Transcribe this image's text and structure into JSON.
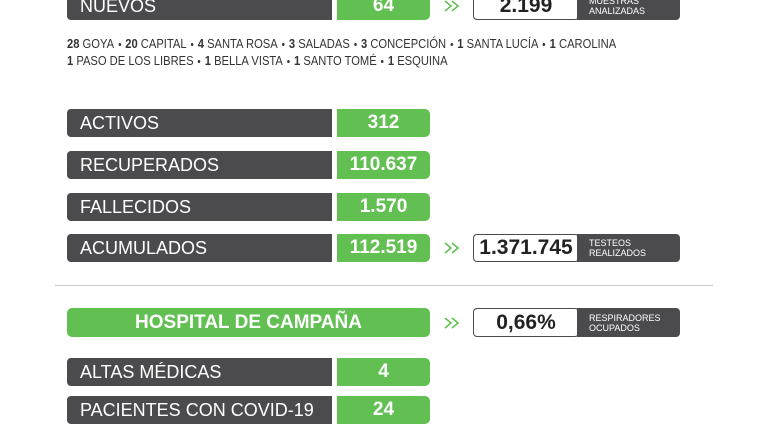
{
  "top": {
    "label": "NUEVOS",
    "value": "64",
    "box_value": "2.199",
    "box_label": [
      "MUESTRAS",
      "ANALIZADAS"
    ]
  },
  "localities": [
    [
      {
        "count": "28",
        "place": "GOYA"
      },
      {
        "count": "20",
        "place": "CAPITAL"
      },
      {
        "count": "4",
        "place": "SANTA ROSA"
      },
      {
        "count": "3",
        "place": "SALADAS"
      },
      {
        "count": "3",
        "place": "CONCEPCIÓN"
      },
      {
        "count": "1",
        "place": "SANTA LUCÍA"
      },
      {
        "count": "1",
        "place": "CAROLINA"
      }
    ],
    [
      {
        "count": "1",
        "place": "PASO DE LOS LIBRES"
      },
      {
        "count": "1",
        "place": "BELLA VISTA"
      },
      {
        "count": "1",
        "place": "SANTO TOMÉ"
      },
      {
        "count": "1",
        "place": "ESQUINA"
      }
    ]
  ],
  "stats": [
    {
      "label": "ACTIVOS",
      "value": "312"
    },
    {
      "label": "RECUPERADOS",
      "value": "110.637"
    },
    {
      "label": "FALLECIDOS",
      "value": "1.570"
    },
    {
      "label": "ACUMULADOS",
      "value": "112.519"
    }
  ],
  "tests": {
    "value": "1.371.745",
    "label": [
      "TESTEOS",
      "REALIZADOS"
    ]
  },
  "hospital": {
    "title": "HOSPITAL DE CAMPAÑA",
    "value": "0,66%",
    "label": [
      "RESPIRADORES",
      "OCUPADOS"
    ]
  },
  "hospital_stats": [
    {
      "label": "ALTAS MÉDICAS",
      "value": "4"
    },
    {
      "label": "PACIENTES CON COVID-19",
      "value": "24"
    }
  ]
}
